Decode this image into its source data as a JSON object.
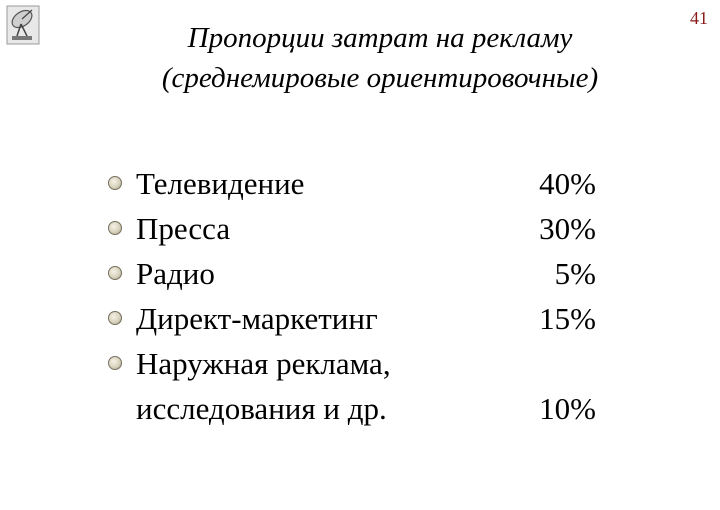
{
  "page_number": "41",
  "logo_icon": "satellite-dish-icon",
  "bullet_color": "#d8d3bd",
  "page_number_color": "#8b1a1a",
  "title": {
    "line1": "Пропорции затрат на рекламу",
    "line2": "(среднемировые ориентировочные)"
  },
  "items": [
    {
      "label_lines": [
        "Телевидение"
      ],
      "value": "40%"
    },
    {
      "label_lines": [
        "Пресса"
      ],
      "value": "30%"
    },
    {
      "label_lines": [
        "Радио"
      ],
      "value": "5%"
    },
    {
      "label_lines": [
        "Директ-маркетинг"
      ],
      "value": "15%"
    },
    {
      "label_lines": [
        "Наружная реклама,",
        "исследования и др."
      ],
      "value": "10%"
    }
  ]
}
